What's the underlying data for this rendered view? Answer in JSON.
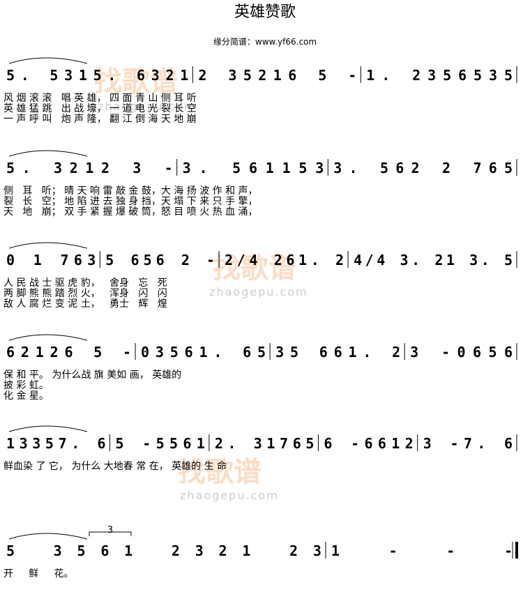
{
  "title": "英雄赞歌",
  "subtitle": "缘分简谱：www.yf66.com",
  "watermark": "找歌谱",
  "watermark_url": "zhaogepu.com",
  "systems": [
    {
      "measures": [
        "5. 5315. 6321",
        "2 35216 5 -",
        "1. 2356535"
      ],
      "lyrics": [
        "风 烟 滚 滚   唱 英 雄， 四 面 青 山 侧 耳 听",
        "英 雄 猛 跳   出 战 壕， 一 道 电 光 裂 长 空",
        "一 声 呼 叫   炮 声 隆， 翻 江 倒 海 天 地 崩"
      ]
    },
    {
      "measures": [
        "5. 3212 3 -",
        "3. 561153",
        "3. 562 2 765"
      ],
      "lyrics": [
        "侧   耳   听； 晴 天 响 雷 敲 金 鼓，大 海 扬 波 作 和 声，",
        "裂   长   空； 地 陷 进 去 独 身 挡，天 塌 下 来 只 手 擎，",
        "天   地   崩； 双 手 紧 握 爆 破 筒，怒 目 喷 火 热 血 涌，"
      ]
    },
    {
      "measures": [
        "0 1 763",
        "5 656 2 -",
        "2/4 261. 2",
        "4/4 3. 21 3. 5"
      ],
      "lyrics": [
        "人 民 战 士 驱 虎 豹，   舍身   忘   死",
        "两 脚 熊 熊 踏 烈 火，   浑身   闪   闪",
        "敌 人 腐 烂 变 泥 土，   勇士   辉   煌"
      ]
    },
    {
      "measures": [
        "62126 5 -",
        "03561. 65",
        "35 661. 2",
        "3 -0656"
      ],
      "lyrics": [
        "保 和 平。 为什么战 旗 美如 画， 英雄的",
        "披 彩 虹。",
        "化 金 星。"
      ]
    },
    {
      "measures": [
        "13357. 6",
        "5 -5561",
        "2. 31765",
        "6 -6612",
        "3 -7. 6"
      ],
      "lyrics": [
        "鲜血染 了 它， 为什么 大地春 常 在， 英雄的 生 命"
      ]
    },
    {
      "measures": [
        "5 3561 2321 23",
        "1 - - -"
      ],
      "triplet": "3",
      "lyrics": [
        "开     鲜     花。"
      ]
    }
  ]
}
